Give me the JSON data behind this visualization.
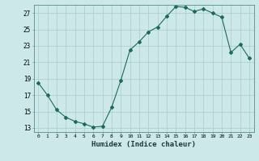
{
  "x": [
    0,
    1,
    2,
    3,
    4,
    5,
    6,
    7,
    8,
    9,
    10,
    11,
    12,
    13,
    14,
    15,
    16,
    17,
    18,
    19,
    20,
    21,
    22,
    23
  ],
  "y": [
    18.5,
    17.0,
    15.2,
    14.3,
    13.8,
    13.5,
    13.1,
    13.2,
    15.5,
    18.8,
    22.5,
    23.5,
    24.7,
    25.3,
    26.6,
    27.8,
    27.7,
    27.2,
    27.5,
    27.0,
    26.5,
    22.2,
    23.2,
    21.5
  ],
  "line_color": "#1a6b5a",
  "marker": "D",
  "marker_size": 2,
  "bg_color": "#cde8e8",
  "grid_color": "#aacccc",
  "xlabel": "Humidex (Indice chaleur)",
  "ylim": [
    12.5,
    28.0
  ],
  "xlim": [
    -0.5,
    23.5
  ],
  "yticks": [
    13,
    15,
    17,
    19,
    21,
    23,
    25,
    27
  ],
  "xticks": [
    0,
    1,
    2,
    3,
    4,
    5,
    6,
    7,
    8,
    9,
    10,
    11,
    12,
    13,
    14,
    15,
    16,
    17,
    18,
    19,
    20,
    21,
    22,
    23
  ]
}
